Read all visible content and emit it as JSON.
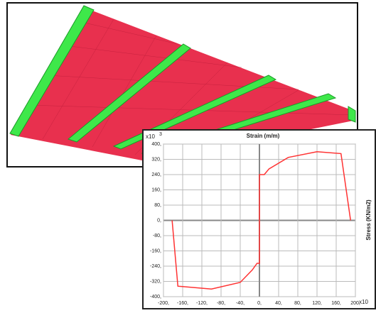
{
  "chart_data": {
    "type": "line",
    "x_label": "Strain  (m/m)",
    "y_label": "Stress  (KN/m2)",
    "y_multiplier": "x10",
    "y_exponent": "3",
    "x_multiplier": "x10",
    "x": [
      -182,
      -170,
      -100,
      -40,
      -15,
      -5,
      0,
      0,
      10,
      20,
      60,
      120,
      170,
      190
    ],
    "series": [
      {
        "color": "#ff3333",
        "values": [
          0,
          -345,
          -360,
          -325,
          -260,
          -225,
          -225,
          240,
          240,
          270,
          330,
          360,
          350,
          0
        ]
      }
    ],
    "xlim": [
      -200,
      200
    ],
    "ylim": [
      -400,
      400
    ],
    "xticks": [
      {
        "value": -200,
        "label": "-200,"
      },
      {
        "value": -160,
        "label": "-160,"
      },
      {
        "value": -120,
        "label": "-120,"
      },
      {
        "value": -80,
        "label": "-80,"
      },
      {
        "value": -40,
        "label": "-40,"
      },
      {
        "value": 0,
        "label": "0,"
      },
      {
        "value": 40,
        "label": "40,"
      },
      {
        "value": 80,
        "label": "80,"
      },
      {
        "value": 120,
        "label": "120,"
      },
      {
        "value": 160,
        "label": "160,"
      },
      {
        "value": 200,
        "label": "200,"
      }
    ],
    "yticks": [
      {
        "value": -400,
        "label": "-400,"
      },
      {
        "value": -320,
        "label": "-320,"
      },
      {
        "value": -240,
        "label": "-240,"
      },
      {
        "value": -160,
        "label": "-160,"
      },
      {
        "value": -80,
        "label": "-80,"
      },
      {
        "value": 0,
        "label": "0,"
      },
      {
        "value": 80,
        "label": "80,"
      },
      {
        "value": 160,
        "label": "160,"
      },
      {
        "value": 240,
        "label": "240,"
      },
      {
        "value": 320,
        "label": "320,"
      },
      {
        "value": 400,
        "label": "400,"
      }
    ],
    "grid": true
  }
}
